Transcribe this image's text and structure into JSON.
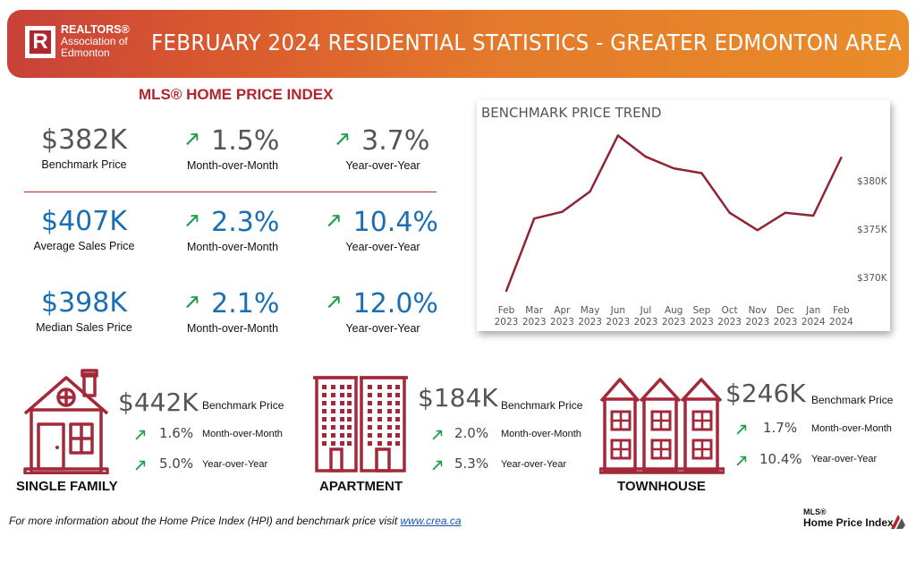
{
  "header": {
    "logo_line1": "REALTORS®",
    "logo_line2": "Association of",
    "logo_line3": "Edmonton",
    "logo_letter": "R",
    "title": "FEBRUARY 2024 RESIDENTIAL STATISTICS - GREATER EDMONTON AREA"
  },
  "hpi": {
    "title": "MLS® HOME PRICE INDEX",
    "rows": [
      {
        "value": "$382K",
        "label": "Benchmark Price",
        "mom": "1.5%",
        "mom_label": "Month-over-Month",
        "yoy": "3.7%",
        "yoy_label": "Year-over-Year"
      },
      {
        "value": "$407K",
        "label": "Average Sales Price",
        "mom": "2.3%",
        "mom_label": "Month-over-Month",
        "yoy": "10.4%",
        "yoy_label": "Year-over-Year"
      },
      {
        "value": "$398K",
        "label": "Median Sales Price",
        "mom": "2.1%",
        "mom_label": "Month-over-Month",
        "yoy": "12.0%",
        "yoy_label": "Year-over-Year"
      }
    ],
    "arrow": "🠕"
  },
  "chart_data": {
    "type": "line",
    "title": "BENCHMARK PRICE TREND",
    "categories": [
      "Feb 2023",
      "Mar 2023",
      "Apr 2023",
      "May 2023",
      "Jun 2023",
      "Jul 2023",
      "Aug 2023",
      "Sep 2023",
      "Oct 2023",
      "Nov 2023",
      "Dec 2023",
      "Jan 2024",
      "Feb 2024"
    ],
    "x_tick_top": [
      "Feb",
      "Mar",
      "Apr",
      "May",
      "Jun",
      "Jul",
      "Aug",
      "Sep",
      "Oct",
      "Nov",
      "Dec",
      "Jan",
      "Feb"
    ],
    "x_tick_bottom": [
      "2023",
      "2023",
      "2023",
      "2023",
      "2023",
      "2023",
      "2023",
      "2023",
      "2023",
      "2023",
      "2023",
      "2024",
      "2024"
    ],
    "values": [
      368.6,
      376.1,
      376.8,
      378.9,
      384.7,
      382.5,
      381.3,
      380.8,
      376.7,
      374.9,
      376.7,
      376.4,
      382.4
    ],
    "y_ticks": [
      370,
      375,
      380
    ],
    "y_tick_labels": [
      "$370K",
      "$375K",
      "$380K"
    ],
    "ylim": [
      367.5,
      386.5
    ],
    "line_color": "#8f2534",
    "grid": false
  },
  "property_types": [
    {
      "name": "SINGLE FAMILY",
      "value": "$442K",
      "label": "Benchmark Price",
      "mom": "1.6%",
      "mom_label": "Month-over-Month",
      "yoy": "5.0%",
      "yoy_label": "Year-over-Year"
    },
    {
      "name": "APARTMENT",
      "value": "$184K",
      "label": "Benchmark Price",
      "mom": "2.0%",
      "mom_label": "Month-over-Month",
      "yoy": "5.3%",
      "yoy_label": "Year-over-Year"
    },
    {
      "name": "TOWNHOUSE",
      "value": "$246K",
      "label": "Benchmark Price",
      "mom": "1.7%",
      "mom_label": "Month-over-Month",
      "yoy": "10.4%",
      "yoy_label": "Year-over-Year"
    }
  ],
  "footer": {
    "text": "For more information about the Home Price Index (HPI) and benchmark price visit ",
    "link": "www.crea.ca"
  },
  "hpi_logo": {
    "line1": "MLS®",
    "line2": "Home Price Index"
  },
  "colors": {
    "accent_red": "#b3252c",
    "icon_red": "#a3293a",
    "up_green": "#1e9d4a",
    "blue": "#1a6eb3"
  }
}
